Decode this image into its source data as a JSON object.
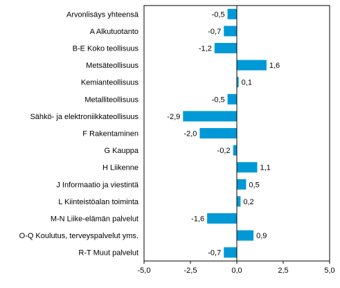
{
  "chart_data": {
    "type": "bar",
    "orientation": "horizontal",
    "categories": [
      "Arvonlisäys yhteensä",
      "A Alkutuotanto",
      "B-E Koko teollisuus",
      "Metsäteollisuus",
      "Kemianteollisuus",
      "Metalliteollisuus",
      "Sähkö- ja elektroniikkateollisuus",
      "F Rakentaminen",
      "G Kauppa",
      "H Liikenne",
      "J Informaatio ja viestintä",
      "L Kiinteistöalan toiminta",
      "M-N Liike-elämän palvelut",
      "O-Q Koulutus, terveyspalvelut yms.",
      "R-T Muut palvelut"
    ],
    "values": [
      -0.5,
      -0.7,
      -1.2,
      1.6,
      0.1,
      -0.5,
      -2.9,
      -2.0,
      -0.2,
      1.1,
      0.5,
      0.2,
      -1.6,
      0.9,
      -0.7
    ],
    "value_labels": [
      "-0,5",
      "-0,7",
      "-1,2",
      "1,6",
      "0,1",
      "-0,5",
      "-2,9",
      "-2,0",
      "-0,2",
      "1,1",
      "0,5",
      "0,2",
      "-1,6",
      "0,9",
      "-0,7"
    ],
    "xlim": [
      -5.0,
      5.0
    ],
    "xticks": [
      -5.0,
      -2.5,
      0.0,
      2.5,
      5.0
    ],
    "xtick_labels": [
      "-5,0",
      "-2,5",
      "0,0",
      "2,5",
      "5,0"
    ],
    "bar_color": "#0099d6",
    "grid": false,
    "legend": "none"
  }
}
